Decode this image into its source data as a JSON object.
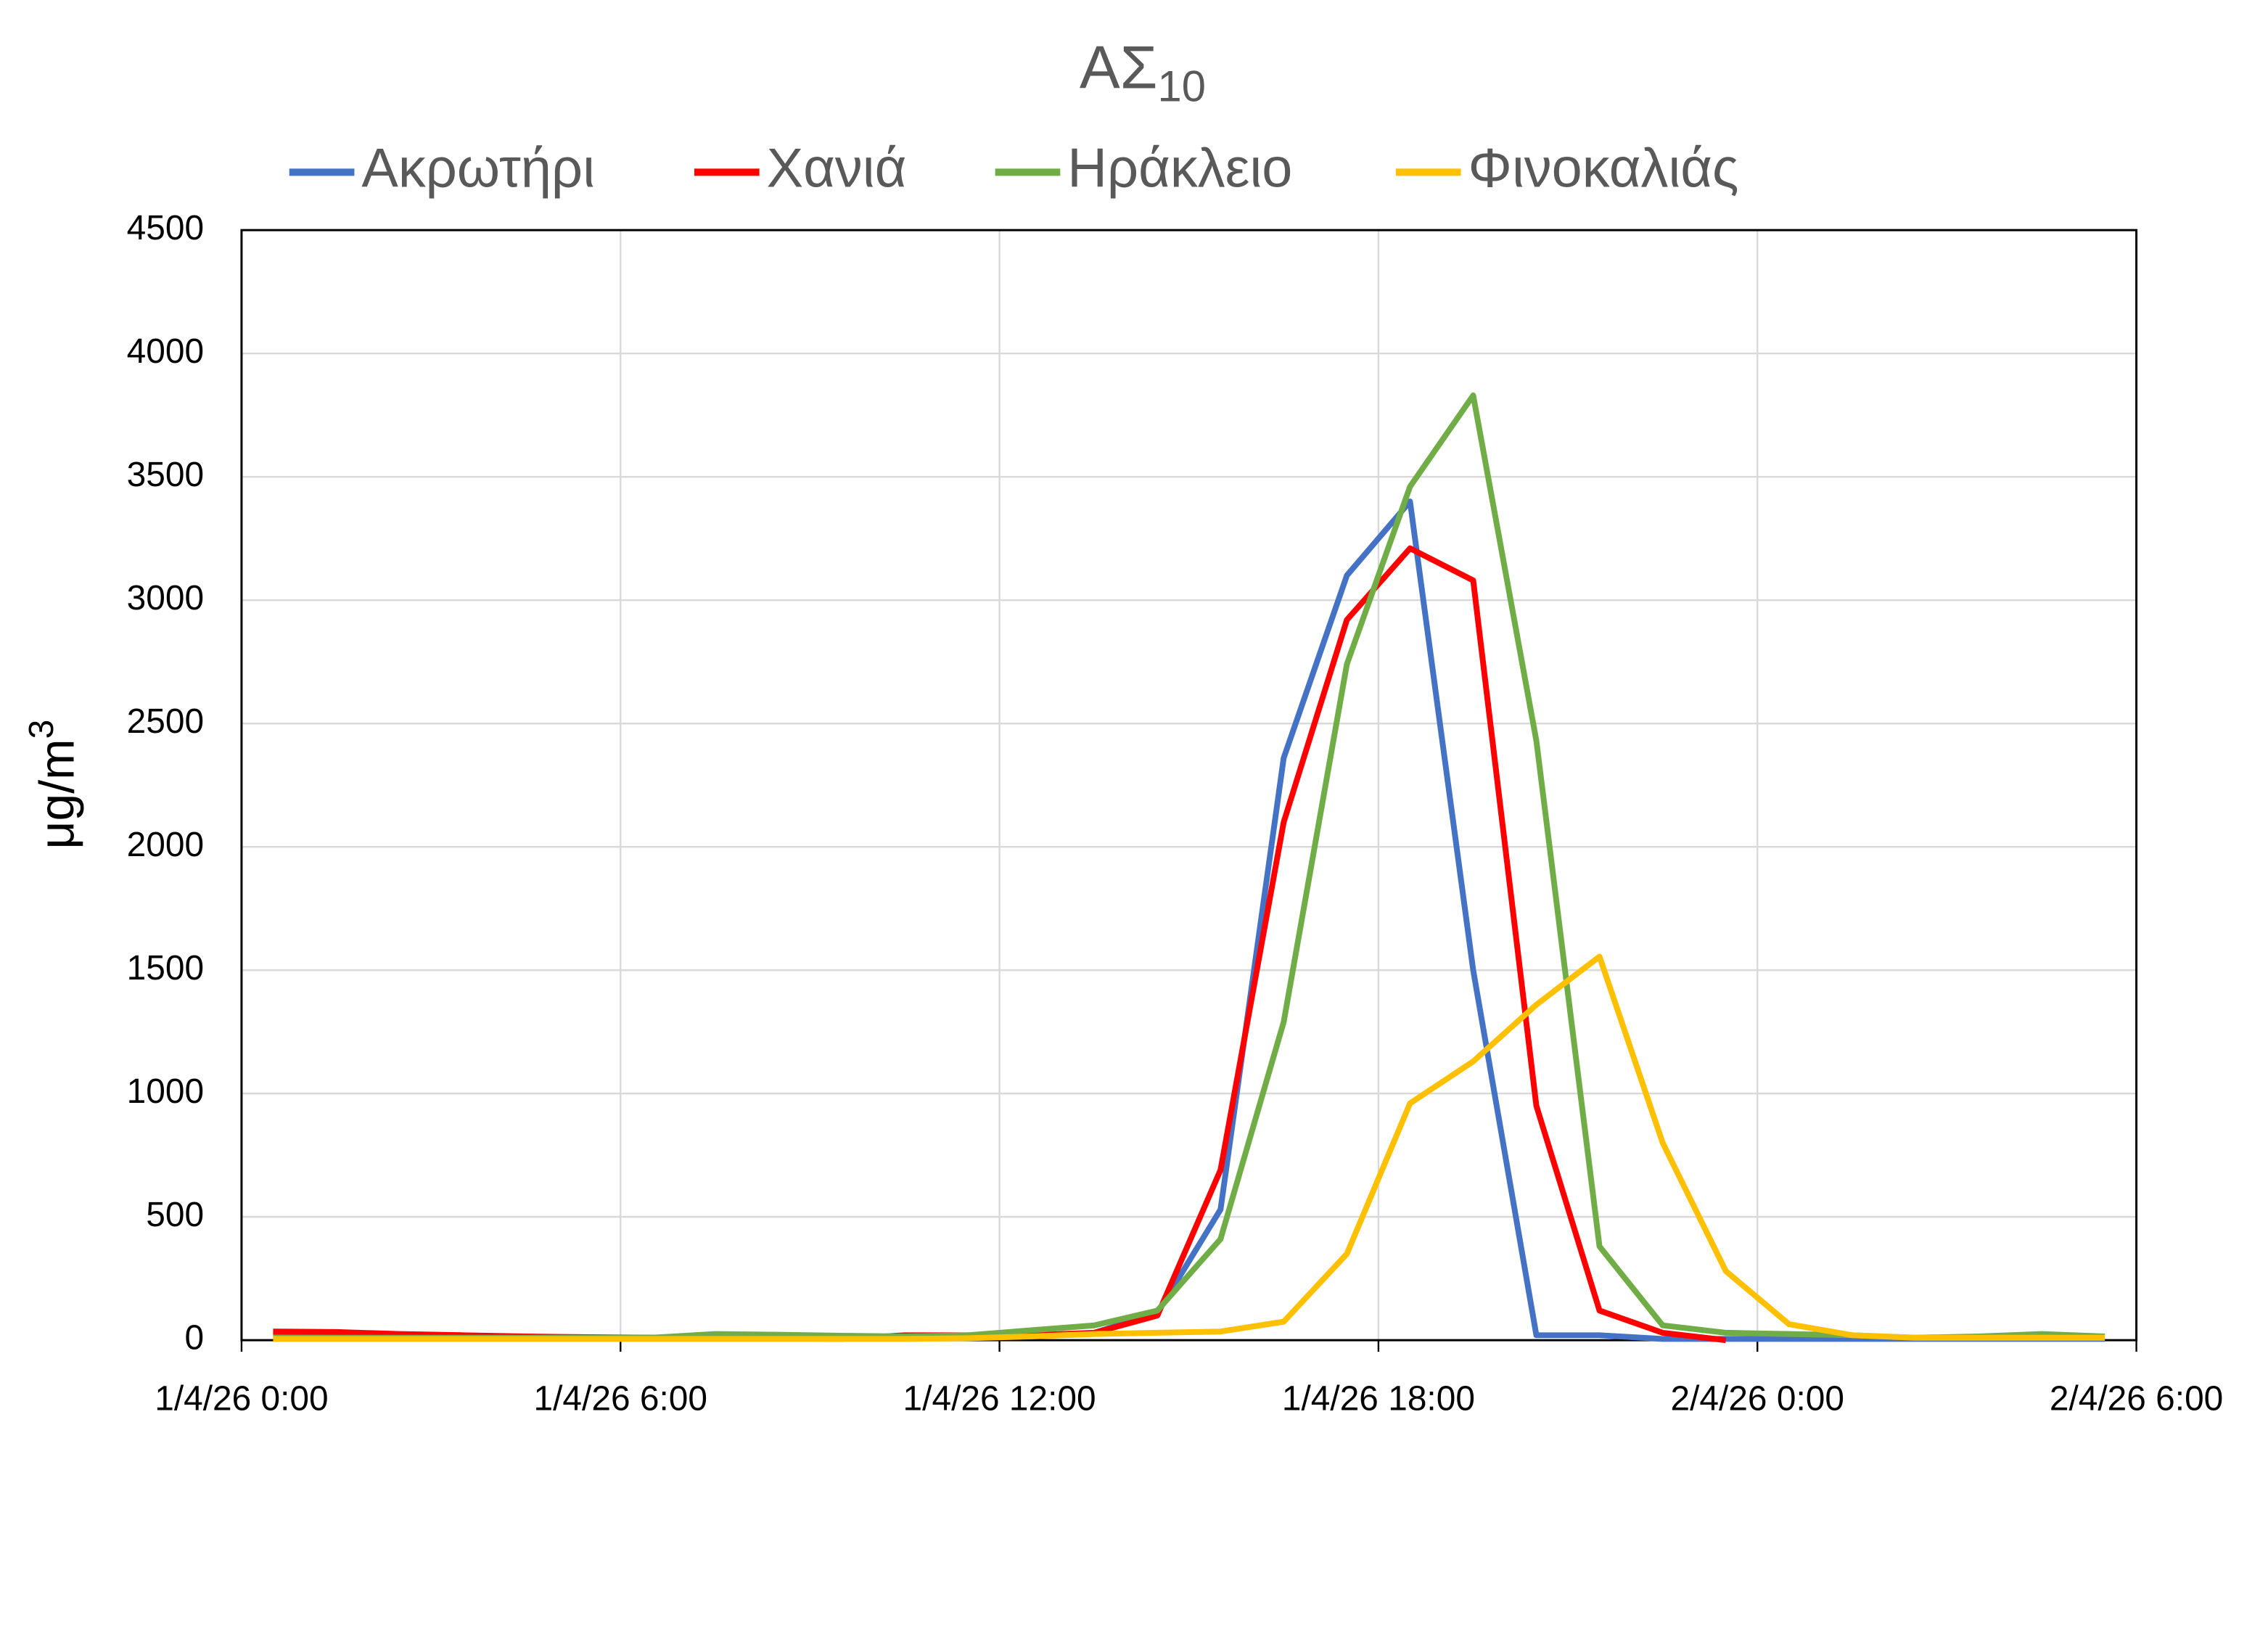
{
  "chart_data": {
    "type": "line",
    "title": {
      "text": "ΑΣ",
      "subscript": "10"
    },
    "ylabel": {
      "text": "μg/m",
      "superscript": "3"
    },
    "x": [
      0.5,
      1.5,
      2.5,
      3.5,
      4.5,
      5.5,
      6.5,
      7.5,
      8.5,
      9.5,
      10.5,
      11.5,
      12.5,
      13.5,
      14.5,
      15.5,
      16.5,
      17.5,
      18.5,
      19.5,
      20.5,
      21.5,
      22.5,
      23.5,
      24.5,
      25.5,
      26.5,
      27.5,
      28.5,
      29.5
    ],
    "xlim": [
      0,
      30
    ],
    "xticks": [
      {
        "value": 0,
        "label": "1/4/26 0:00"
      },
      {
        "value": 6,
        "label": "1/4/26 6:00"
      },
      {
        "value": 12,
        "label": "1/4/26 12:00"
      },
      {
        "value": 18,
        "label": "1/4/26 18:00"
      },
      {
        "value": 24,
        "label": "2/4/26 0:00"
      },
      {
        "value": 30,
        "label": "2/4/26 6:00"
      }
    ],
    "ylim": [
      0,
      4500
    ],
    "yticks": [
      0,
      500,
      1000,
      1500,
      2000,
      2500,
      3000,
      3500,
      4000,
      4500
    ],
    "grid": true,
    "legend": "top",
    "series": [
      {
        "name": "Ακρωτήρι",
        "color": "#4472c4",
        "values": [
          20,
          20,
          18,
          15,
          12,
          10,
          10,
          10,
          10,
          8,
          10,
          15,
          20,
          30,
          110,
          530,
          2360,
          3100,
          3400,
          1500,
          20,
          20,
          5,
          5,
          5,
          5,
          5,
          5,
          5,
          5
        ]
      },
      {
        "name": "Χανιά",
        "color": "#ff0000",
        "values": [
          35,
          33,
          25,
          20,
          15,
          12,
          10,
          8,
          8,
          5,
          20,
          20,
          20,
          30,
          100,
          690,
          2100,
          2920,
          3210,
          3080,
          950,
          120,
          30,
          0,
          null,
          null,
          null,
          null,
          null,
          null
        ]
      },
      {
        "name": "Ηράκλειο",
        "color": "#70ad47",
        "values": [
          10,
          10,
          10,
          10,
          10,
          10,
          10,
          25,
          22,
          18,
          15,
          20,
          40,
          60,
          120,
          410,
          1290,
          2740,
          3460,
          3830,
          2430,
          380,
          60,
          30,
          25,
          20,
          10,
          15,
          25,
          15
        ]
      },
      {
        "name": "Φινοκαλιάς",
        "color": "#ffc000",
        "values": [
          5,
          5,
          5,
          5,
          5,
          5,
          5,
          5,
          5,
          5,
          5,
          8,
          15,
          25,
          30,
          35,
          75,
          350,
          960,
          1130,
          1360,
          1555,
          800,
          280,
          65,
          20,
          10,
          10,
          10,
          10
        ]
      }
    ]
  }
}
